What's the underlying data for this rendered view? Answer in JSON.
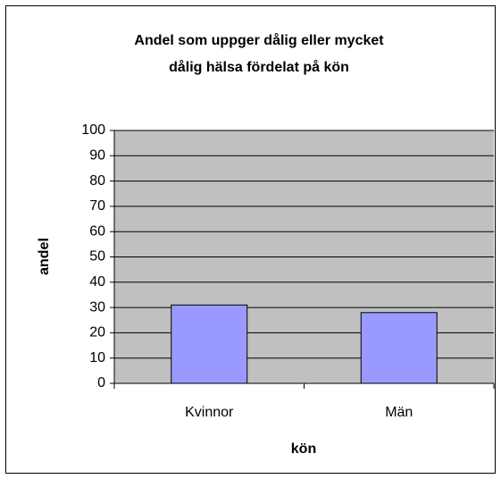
{
  "chart_data": {
    "type": "bar",
    "title": [
      "Andel som uppger dålig eller mycket",
      "dålig hälsa fördelat på kön"
    ],
    "x_label": "kön",
    "y_label": "andel",
    "categories": [
      "Kvinnor",
      "Män"
    ],
    "values": [
      31,
      28
    ],
    "color": "#9999ff",
    "ylim": [
      0,
      100
    ],
    "yticks": [
      0,
      10,
      20,
      30,
      40,
      50,
      60,
      70,
      80,
      90,
      100
    ],
    "grid": true
  }
}
